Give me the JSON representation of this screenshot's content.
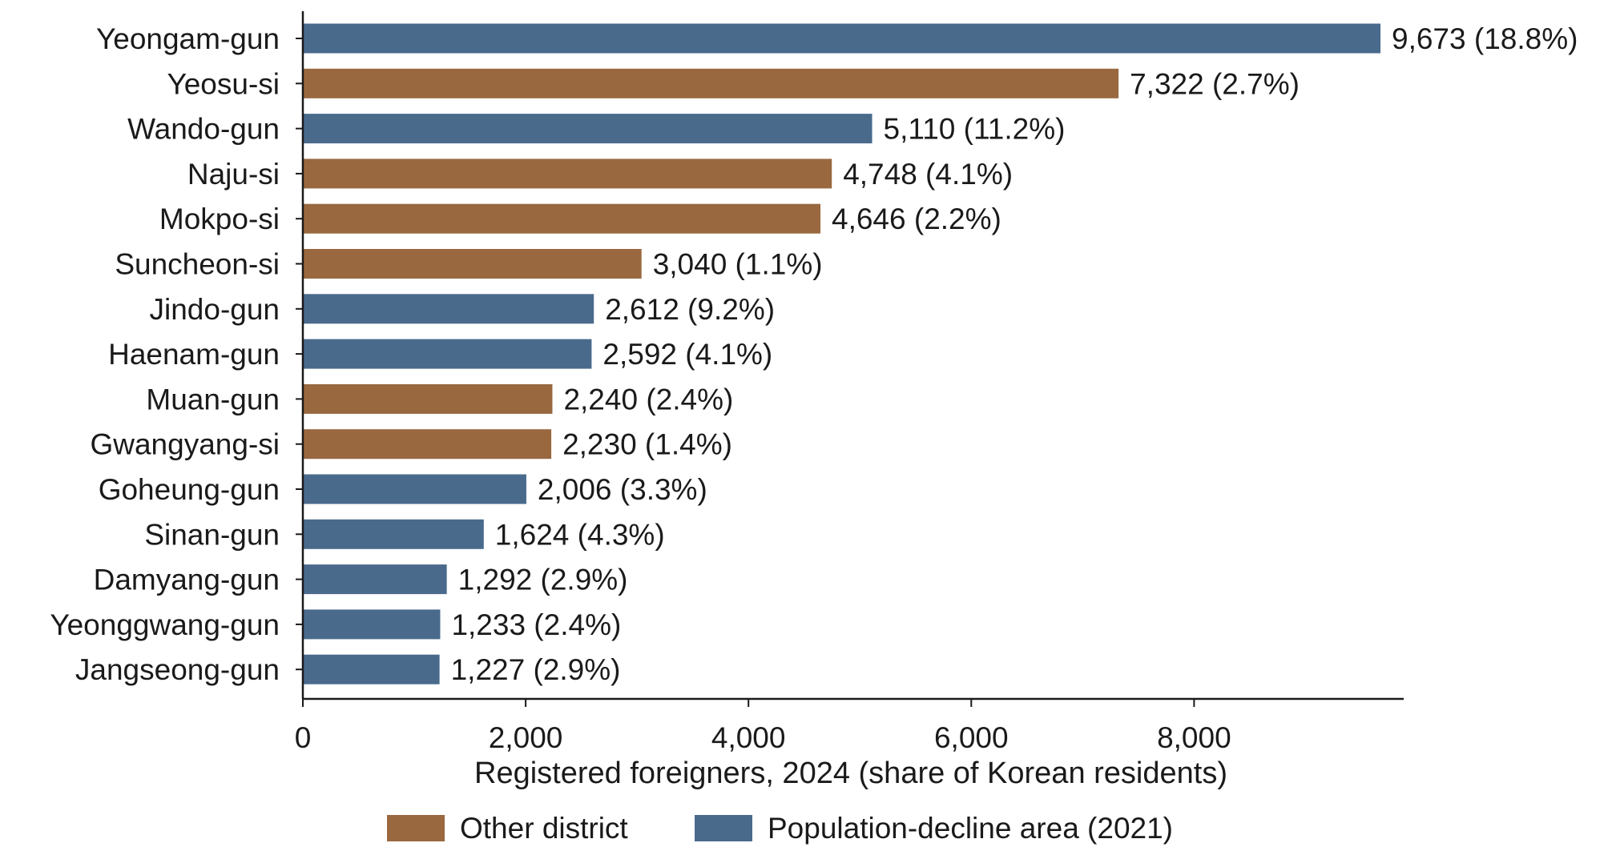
{
  "chart_data": {
    "type": "bar",
    "orientation": "horizontal",
    "title": "",
    "xlabel": "Registered foreigners, 2024 (share of Korean residents)",
    "ylabel": "",
    "xlim": [
      0,
      9673
    ],
    "xticks": [
      0,
      2000,
      4000,
      6000,
      8000
    ],
    "xtick_labels": [
      "0",
      "2,000",
      "4,000",
      "6,000",
      "8,000"
    ],
    "grid": false,
    "legend_position": "bottom",
    "legend": [
      {
        "name": "Other district",
        "color": "#99683f"
      },
      {
        "name": "Population-decline area (2021)",
        "color": "#4a6a8c"
      }
    ],
    "categories": [
      "Yeongam-gun",
      "Yeosu-si",
      "Wando-gun",
      "Naju-si",
      "Mokpo-si",
      "Suncheon-si",
      "Jindo-gun",
      "Haenam-gun",
      "Muan-gun",
      "Gwangyang-si",
      "Goheung-gun",
      "Sinan-gun",
      "Damyang-gun",
      "Yeonggwang-gun",
      "Jangseong-gun"
    ],
    "values": [
      9673,
      7322,
      5110,
      4748,
      4646,
      3040,
      2612,
      2592,
      2240,
      2230,
      2006,
      1624,
      1292,
      1233,
      1227
    ],
    "groups": [
      1,
      0,
      1,
      0,
      0,
      0,
      1,
      1,
      0,
      0,
      1,
      1,
      1,
      1,
      1
    ],
    "data_labels": [
      "9,673 (18.8%)",
      "7,322 (2.7%)",
      "5,110 (11.2%)",
      "4,748 (4.1%)",
      "4,646 (2.2%)",
      "3,040 (1.1%)",
      "2,612 (9.2%)",
      "2,592 (4.1%)",
      "2,240 (2.4%)",
      "2,230 (1.4%)",
      "2,006 (3.3%)",
      "1,624 (4.3%)",
      "1,292 (2.9%)",
      "1,233 (2.4%)",
      "1,227 (2.9%)"
    ]
  }
}
